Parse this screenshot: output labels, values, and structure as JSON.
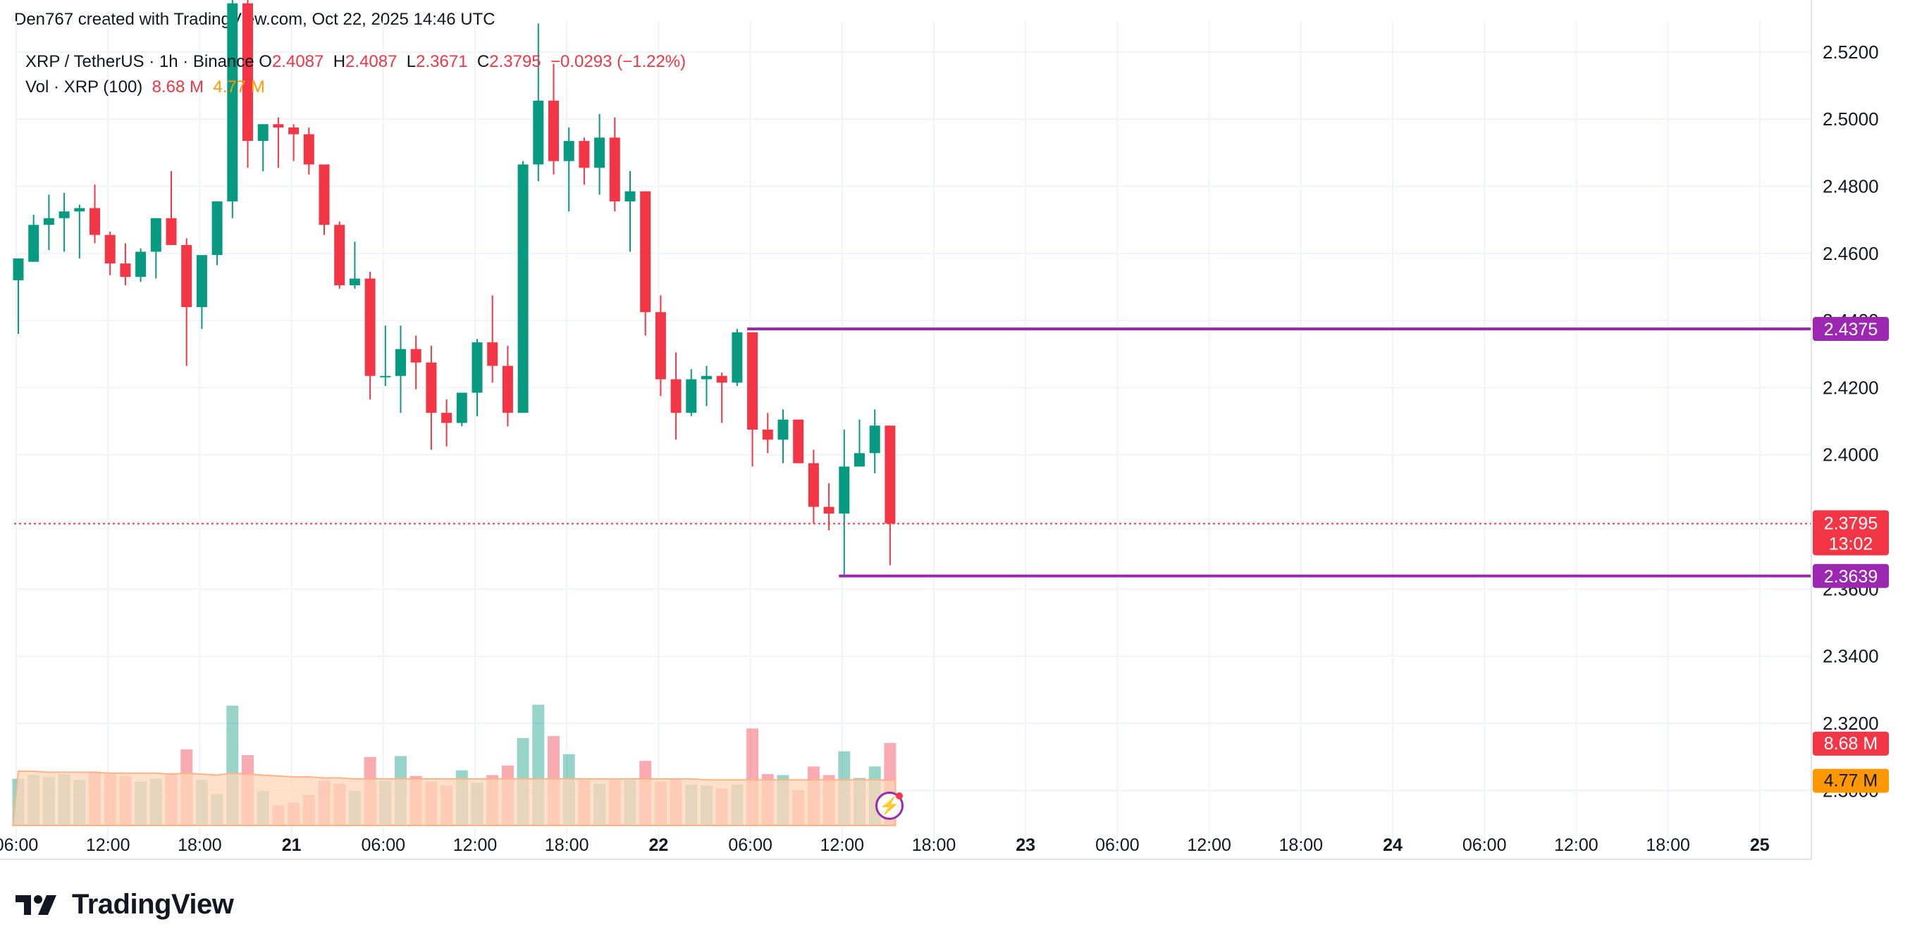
{
  "header": {
    "author_line": "Den767 created with TradingView.com, Oct 22, 2025 14:46 UTC"
  },
  "legend": {
    "symbol": "XRP / TetherUS · 1h · Binance",
    "o_label": "O",
    "o_value": "2.4087",
    "h_label": "H",
    "h_value": "2.4087",
    "l_label": "L",
    "l_value": "2.3671",
    "c_label": "C",
    "c_value": "2.3795",
    "change": "−0.0293 (−1.22%)",
    "vol_label": "Vol · XRP (100)",
    "vol_value": "8.68 M",
    "vol_ma_value": "4.77 M"
  },
  "footer": {
    "brand": "TradingView",
    "logo_icon": "tradingview-logo-icon"
  },
  "colors": {
    "up": "#089981",
    "down": "#f23645",
    "level": "#9c27b0",
    "vol_ma": "#ff9800",
    "grid": "#f0f3fa"
  },
  "chart_data": {
    "type": "candlestick",
    "timeframe": "1h",
    "ylim": [
      2.29,
      2.525
    ],
    "y_ticks": [
      "2.5200",
      "2.5000",
      "2.4800",
      "2.4600",
      "2.4400",
      "2.4200",
      "2.4000",
      "2.3800",
      "2.3600",
      "2.3400",
      "2.3200",
      "2.3000"
    ],
    "x_ticks": [
      "06:00",
      "12:00",
      "18:00",
      "21",
      "06:00",
      "12:00",
      "18:00",
      "22",
      "06:00",
      "12:00",
      "18:00",
      "23",
      "06:00",
      "12:00",
      "18:00",
      "24",
      "06:00",
      "12:00",
      "18:00",
      "25"
    ],
    "x_ticks_bold": [
      false,
      false,
      false,
      true,
      false,
      false,
      false,
      true,
      false,
      false,
      false,
      true,
      false,
      false,
      false,
      true,
      false,
      false,
      false,
      true
    ],
    "candles": [
      {
        "o": 2.452,
        "h": 2.4585,
        "l": 2.436,
        "c": 2.4585,
        "v": 4.9
      },
      {
        "o": 2.4575,
        "h": 2.4715,
        "l": 2.4575,
        "c": 2.4685,
        "v": 5.3
      },
      {
        "o": 2.4685,
        "h": 2.4775,
        "l": 2.461,
        "c": 2.4705,
        "v": 5.1
      },
      {
        "o": 2.4705,
        "h": 2.478,
        "l": 2.4605,
        "c": 2.4725,
        "v": 5.4
      },
      {
        "o": 2.4725,
        "h": 2.4745,
        "l": 2.4585,
        "c": 2.4735,
        "v": 4.8
      },
      {
        "o": 2.4735,
        "h": 2.4805,
        "l": 2.463,
        "c": 2.4655,
        "v": 5.6
      },
      {
        "o": 2.4655,
        "h": 2.4665,
        "l": 2.4535,
        "c": 2.457,
        "v": 5.5
      },
      {
        "o": 2.457,
        "h": 2.463,
        "l": 2.4505,
        "c": 2.453,
        "v": 5.2
      },
      {
        "o": 2.453,
        "h": 2.4615,
        "l": 2.4515,
        "c": 2.4605,
        "v": 4.6
      },
      {
        "o": 2.4605,
        "h": 2.4705,
        "l": 2.4525,
        "c": 2.4705,
        "v": 4.9
      },
      {
        "o": 2.4705,
        "h": 2.4845,
        "l": 2.4625,
        "c": 2.4625,
        "v": 5.5
      },
      {
        "o": 2.4625,
        "h": 2.4645,
        "l": 2.4265,
        "c": 2.444,
        "v": 8.0
      },
      {
        "o": 2.444,
        "h": 2.4575,
        "l": 2.4375,
        "c": 2.4595,
        "v": 4.8
      },
      {
        "o": 2.4595,
        "h": 2.4755,
        "l": 2.4565,
        "c": 2.4755,
        "v": 3.3
      },
      {
        "o": 2.4755,
        "h": 2.5455,
        "l": 2.4705,
        "c": 2.5345,
        "v": 12.6
      },
      {
        "o": 2.5345,
        "h": 2.5375,
        "l": 2.4855,
        "c": 2.4935,
        "v": 7.4
      },
      {
        "o": 2.4935,
        "h": 2.4985,
        "l": 2.4845,
        "c": 2.4985,
        "v": 3.6
      },
      {
        "o": 2.4985,
        "h": 2.5005,
        "l": 2.4855,
        "c": 2.4975,
        "v": 2.1
      },
      {
        "o": 2.4975,
        "h": 2.4985,
        "l": 2.4875,
        "c": 2.4955,
        "v": 2.4
      },
      {
        "o": 2.4955,
        "h": 2.4975,
        "l": 2.4835,
        "c": 2.4865,
        "v": 3.2
      },
      {
        "o": 2.4865,
        "h": 2.4865,
        "l": 2.4655,
        "c": 2.4685,
        "v": 4.7
      },
      {
        "o": 2.4685,
        "h": 2.4695,
        "l": 2.4495,
        "c": 2.4505,
        "v": 4.4
      },
      {
        "o": 2.4505,
        "h": 2.4635,
        "l": 2.4495,
        "c": 2.4525,
        "v": 3.6
      },
      {
        "o": 2.4525,
        "h": 2.4545,
        "l": 2.4165,
        "c": 2.4235,
        "v": 7.2
      },
      {
        "o": 2.4235,
        "h": 2.4385,
        "l": 2.4205,
        "c": 2.4235,
        "v": 4.7
      },
      {
        "o": 2.4235,
        "h": 2.4385,
        "l": 2.4125,
        "c": 2.4315,
        "v": 7.3
      },
      {
        "o": 2.4315,
        "h": 2.4355,
        "l": 2.4195,
        "c": 2.4275,
        "v": 5.2
      },
      {
        "o": 2.4275,
        "h": 2.4325,
        "l": 2.4015,
        "c": 2.4125,
        "v": 4.6
      },
      {
        "o": 2.4125,
        "h": 2.4165,
        "l": 2.4025,
        "c": 2.4095,
        "v": 4.2
      },
      {
        "o": 2.4095,
        "h": 2.4185,
        "l": 2.4085,
        "c": 2.4185,
        "v": 5.8
      },
      {
        "o": 2.4185,
        "h": 2.4345,
        "l": 2.4115,
        "c": 2.4335,
        "v": 4.5
      },
      {
        "o": 2.4335,
        "h": 2.4475,
        "l": 2.4215,
        "c": 2.4265,
        "v": 5.3
      },
      {
        "o": 2.4265,
        "h": 2.4325,
        "l": 2.4085,
        "c": 2.4125,
        "v": 6.3
      },
      {
        "o": 2.4125,
        "h": 2.4875,
        "l": 2.4125,
        "c": 2.4865,
        "v": 9.2
      },
      {
        "o": 2.4865,
        "h": 2.5285,
        "l": 2.4815,
        "c": 2.5055,
        "v": 12.7
      },
      {
        "o": 2.5055,
        "h": 2.5165,
        "l": 2.4835,
        "c": 2.4875,
        "v": 9.4
      },
      {
        "o": 2.4875,
        "h": 2.4975,
        "l": 2.4725,
        "c": 2.4935,
        "v": 7.5
      },
      {
        "o": 2.4935,
        "h": 2.4945,
        "l": 2.4805,
        "c": 2.4855,
        "v": 4.8
      },
      {
        "o": 2.4855,
        "h": 2.5015,
        "l": 2.4775,
        "c": 2.4945,
        "v": 4.4
      },
      {
        "o": 2.4945,
        "h": 2.5005,
        "l": 2.4725,
        "c": 2.4755,
        "v": 4.9
      },
      {
        "o": 2.4755,
        "h": 2.4845,
        "l": 2.4605,
        "c": 2.4785,
        "v": 4.8
      },
      {
        "o": 2.4785,
        "h": 2.4785,
        "l": 2.4355,
        "c": 2.4425,
        "v": 6.8
      },
      {
        "o": 2.4425,
        "h": 2.4475,
        "l": 2.4175,
        "c": 2.4225,
        "v": 4.6
      },
      {
        "o": 2.4225,
        "h": 2.4305,
        "l": 2.4045,
        "c": 2.4125,
        "v": 4.9
      },
      {
        "o": 2.4125,
        "h": 2.4255,
        "l": 2.4115,
        "c": 2.4225,
        "v": 4.3
      },
      {
        "o": 2.4225,
        "h": 2.4265,
        "l": 2.4145,
        "c": 2.4235,
        "v": 4.2
      },
      {
        "o": 2.4235,
        "h": 2.4245,
        "l": 2.4095,
        "c": 2.4215,
        "v": 3.9
      },
      {
        "o": 2.4215,
        "h": 2.4375,
        "l": 2.4205,
        "c": 2.4365,
        "v": 4.3
      },
      {
        "o": 2.4365,
        "h": 2.4365,
        "l": 2.3965,
        "c": 2.4075,
        "v": 10.2
      },
      {
        "o": 2.4075,
        "h": 2.4125,
        "l": 2.4005,
        "c": 2.4045,
        "v": 5.4
      },
      {
        "o": 2.4045,
        "h": 2.4135,
        "l": 2.3975,
        "c": 2.4105,
        "v": 5.3
      },
      {
        "o": 2.4105,
        "h": 2.4105,
        "l": 2.3985,
        "c": 2.3975,
        "v": 3.7
      },
      {
        "o": 2.3975,
        "h": 2.4015,
        "l": 2.3795,
        "c": 2.3845,
        "v": 6.2
      },
      {
        "o": 2.3845,
        "h": 2.3915,
        "l": 2.3775,
        "c": 2.3825,
        "v": 5.3
      },
      {
        "o": 2.3825,
        "h": 2.4075,
        "l": 2.3639,
        "c": 2.3965,
        "v": 7.8
      },
      {
        "o": 2.3965,
        "h": 2.4105,
        "l": 2.3965,
        "c": 2.4005,
        "v": 5.0
      },
      {
        "o": 2.4005,
        "h": 2.4135,
        "l": 2.3945,
        "c": 2.4087,
        "v": 6.2
      },
      {
        "o": 2.4087,
        "h": 2.4087,
        "l": 2.3671,
        "c": 2.3795,
        "v": 8.68
      }
    ],
    "volume_ma": [
      5.7,
      5.7,
      5.6,
      5.6,
      5.6,
      5.6,
      5.5,
      5.5,
      5.5,
      5.5,
      5.4,
      5.5,
      5.4,
      5.3,
      5.5,
      5.4,
      5.3,
      5.2,
      5.1,
      5.1,
      5.0,
      5.0,
      4.9,
      4.9,
      4.9,
      4.9,
      4.9,
      4.9,
      4.9,
      4.9,
      4.9,
      4.9,
      4.9,
      4.9,
      4.9,
      4.9,
      4.9,
      4.9,
      4.9,
      4.9,
      4.9,
      4.9,
      4.9,
      4.9,
      4.9,
      4.8,
      4.8,
      4.8,
      4.8,
      4.8,
      4.8,
      4.8,
      4.8,
      4.8,
      4.8,
      4.8,
      4.8,
      4.77
    ],
    "levels": [
      {
        "value": 2.4375,
        "label": "2.4375",
        "start_index": 48
      },
      {
        "value": 2.3639,
        "label": "2.3639",
        "start_index": 54
      }
    ],
    "last_price": {
      "label": "2.3795",
      "countdown": "13:02"
    },
    "volume_label": "8.68 M",
    "volume_ma_label": "4.77 M"
  }
}
